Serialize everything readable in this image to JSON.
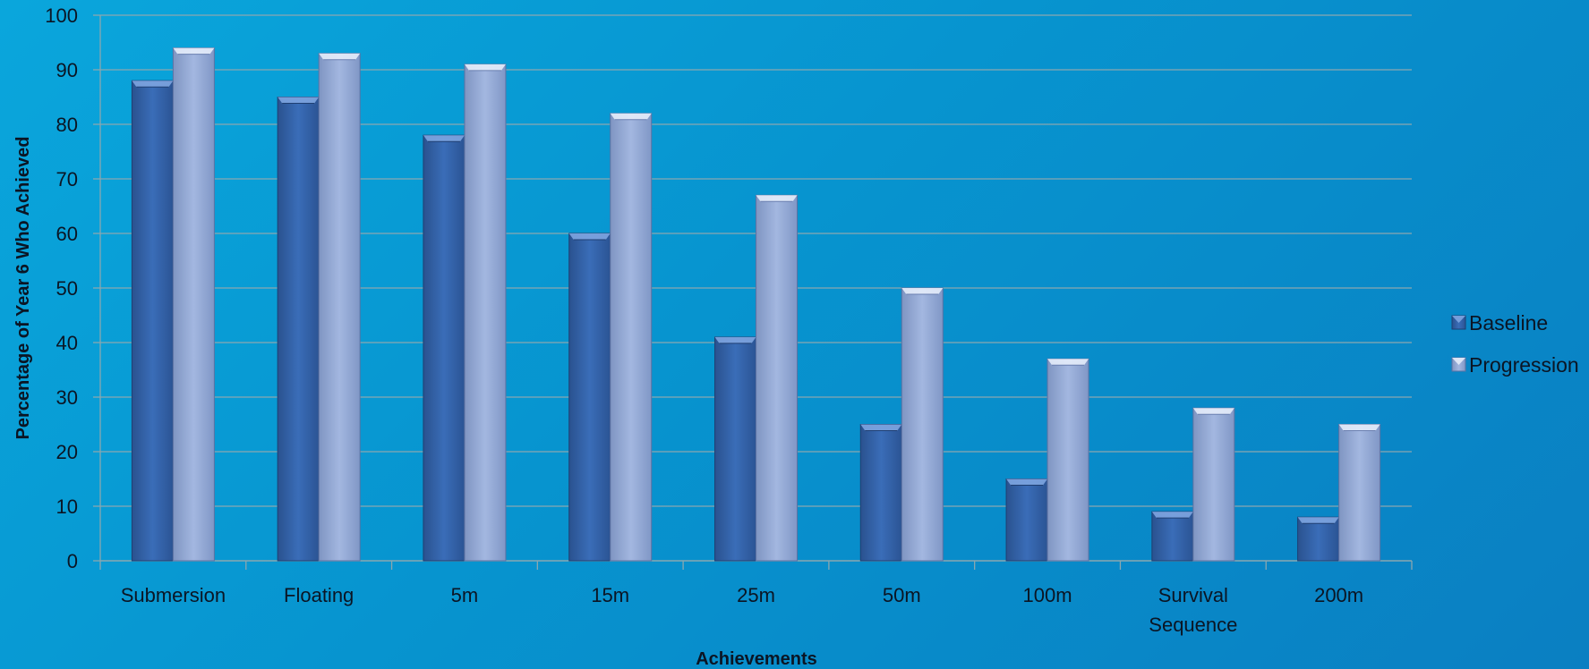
{
  "chart_data": {
    "type": "bar",
    "title": "",
    "xlabel": "Achievements",
    "ylabel": "Percentage of Year 6  Who Achieved",
    "ylim": [
      0,
      100
    ],
    "yticks": [
      0,
      10,
      20,
      30,
      40,
      50,
      60,
      70,
      80,
      90,
      100
    ],
    "grid": true,
    "legend_position": "right",
    "categories": [
      "Submersion",
      "Floating",
      "5m",
      "15m",
      "25m",
      "50m",
      "100m",
      "Survival Sequence",
      "200m"
    ],
    "category_lines": [
      [
        "Submersion"
      ],
      [
        "Floating"
      ],
      [
        "5m"
      ],
      [
        "15m"
      ],
      [
        "25m"
      ],
      [
        "50m"
      ],
      [
        "100m"
      ],
      [
        "Survival",
        "Sequence"
      ],
      [
        "200m"
      ]
    ],
    "series": [
      {
        "name": "Baseline",
        "color": "#3565ad",
        "values": [
          88,
          85,
          78,
          60,
          41,
          25,
          15,
          9,
          8
        ]
      },
      {
        "name": "Progression",
        "color": "#93a9d6",
        "values": [
          94,
          93,
          91,
          82,
          67,
          50,
          37,
          28,
          25
        ]
      }
    ]
  }
}
